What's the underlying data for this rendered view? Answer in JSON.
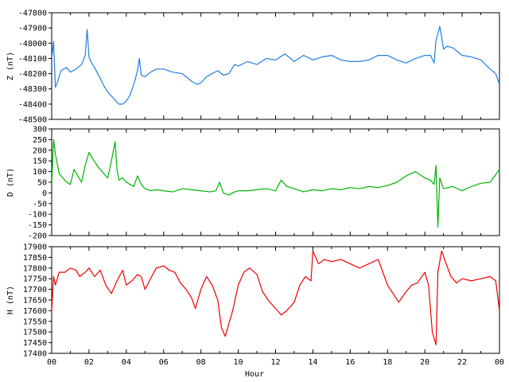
{
  "chart_data": [
    {
      "type": "line",
      "ylabel": "Z (nT)",
      "ylim": [
        -48500,
        -47800
      ],
      "yticks": [
        -47800,
        -47900,
        -48000,
        -48100,
        -48200,
        -48300,
        -48400,
        -48500
      ],
      "xlim": [
        0,
        24
      ],
      "color": "#1f7fe6",
      "series": [
        {
          "x": [
            0.0,
            0.1,
            0.2,
            0.3,
            0.5,
            0.8,
            1.0,
            1.3,
            1.6,
            1.8,
            1.9,
            2.0,
            2.1,
            2.3,
            2.6,
            2.8,
            3.0,
            3.3,
            3.6,
            3.8,
            4.0,
            4.2,
            4.4,
            4.6,
            4.7,
            4.8,
            5.0,
            5.3,
            5.6,
            6.0,
            6.5,
            7.0,
            7.5,
            7.8,
            8.0,
            8.3,
            8.6,
            8.9,
            9.2,
            9.5,
            9.8,
            10.0,
            10.5,
            11.0,
            11.5,
            12.0,
            12.5,
            13.0,
            13.5,
            14.0,
            14.5,
            15.0,
            15.5,
            16.0,
            16.5,
            17.0,
            17.5,
            18.0,
            18.5,
            19.0,
            19.5,
            20.0,
            20.3,
            20.5,
            20.6,
            20.8,
            20.9,
            21.0,
            21.2,
            21.5,
            22.0,
            22.5,
            23.0,
            23.5,
            23.8,
            24.0
          ],
          "y": [
            -48100,
            -47990,
            -48290,
            -48260,
            -48180,
            -48160,
            -48190,
            -48170,
            -48140,
            -48080,
            -47910,
            -48090,
            -48120,
            -48160,
            -48230,
            -48280,
            -48320,
            -48360,
            -48400,
            -48400,
            -48380,
            -48340,
            -48270,
            -48180,
            -48100,
            -48210,
            -48220,
            -48190,
            -48170,
            -48170,
            -48190,
            -48200,
            -48250,
            -48270,
            -48260,
            -48220,
            -48200,
            -48180,
            -48210,
            -48200,
            -48140,
            -48150,
            -48120,
            -48140,
            -48100,
            -48110,
            -48070,
            -48120,
            -48080,
            -48110,
            -48090,
            -48080,
            -48110,
            -48120,
            -48120,
            -48110,
            -48080,
            -48080,
            -48110,
            -48130,
            -48100,
            -48080,
            -48080,
            -48130,
            -47980,
            -47890,
            -47960,
            -48040,
            -48020,
            -48030,
            -48080,
            -48090,
            -48110,
            -48170,
            -48200,
            -48270
          ]
        }
      ]
    },
    {
      "type": "line",
      "ylabel": "D (nT)",
      "ylim": [
        -200,
        300
      ],
      "yticks": [
        300,
        250,
        200,
        150,
        100,
        50,
        0,
        -50,
        -100,
        -150,
        -200
      ],
      "xlim": [
        0,
        24
      ],
      "color": "#00b400",
      "series": [
        {
          "x": [
            0.0,
            0.1,
            0.2,
            0.4,
            0.6,
            0.8,
            1.0,
            1.2,
            1.4,
            1.6,
            1.8,
            2.0,
            2.2,
            2.5,
            2.8,
            3.0,
            3.2,
            3.4,
            3.5,
            3.6,
            3.8,
            4.0,
            4.2,
            4.4,
            4.6,
            4.8,
            5.0,
            5.3,
            5.6,
            6.0,
            6.5,
            7.0,
            7.5,
            8.0,
            8.5,
            8.8,
            9.0,
            9.2,
            9.5,
            9.8,
            10.0,
            10.5,
            11.0,
            11.5,
            12.0,
            12.3,
            12.6,
            13.0,
            13.5,
            14.0,
            14.5,
            15.0,
            15.5,
            16.0,
            16.5,
            17.0,
            17.5,
            18.0,
            18.5,
            19.0,
            19.5,
            20.0,
            20.3,
            20.5,
            20.6,
            20.7,
            20.8,
            21.0,
            21.5,
            22.0,
            22.5,
            23.0,
            23.5,
            24.0
          ],
          "y": [
            40,
            250,
            180,
            90,
            70,
            50,
            40,
            110,
            80,
            50,
            130,
            190,
            160,
            120,
            90,
            70,
            150,
            240,
            110,
            60,
            70,
            50,
            40,
            30,
            80,
            40,
            20,
            10,
            15,
            10,
            5,
            20,
            15,
            10,
            5,
            10,
            50,
            0,
            -10,
            5,
            10,
            10,
            15,
            20,
            10,
            60,
            30,
            20,
            5,
            15,
            10,
            20,
            15,
            25,
            20,
            30,
            25,
            35,
            50,
            80,
            100,
            70,
            60,
            40,
            130,
            -160,
            70,
            20,
            30,
            10,
            30,
            45,
            50,
            110
          ]
        }
      ]
    },
    {
      "type": "line",
      "ylabel": "H (nT)",
      "xlabel": "Hour",
      "ylim": [
        17400,
        17900
      ],
      "yticks": [
        17900,
        17850,
        17800,
        17750,
        17700,
        17650,
        17600,
        17550,
        17500,
        17450,
        17400
      ],
      "xlim": [
        0,
        24
      ],
      "xticks": [
        "00",
        "02",
        "04",
        "06",
        "08",
        "10",
        "12",
        "14",
        "16",
        "18",
        "20",
        "22",
        "00"
      ],
      "color": "#f00000",
      "series": [
        {
          "x": [
            0.0,
            0.1,
            0.2,
            0.4,
            0.7,
            1.0,
            1.3,
            1.5,
            1.8,
            2.0,
            2.3,
            2.6,
            2.9,
            3.2,
            3.5,
            3.8,
            4.0,
            4.3,
            4.6,
            4.8,
            5.0,
            5.3,
            5.6,
            6.0,
            6.3,
            6.6,
            6.9,
            7.2,
            7.5,
            7.7,
            8.0,
            8.3,
            8.6,
            8.9,
            9.1,
            9.3,
            9.5,
            9.7,
            10.0,
            10.3,
            10.6,
            11.0,
            11.3,
            11.6,
            12.0,
            12.3,
            12.6,
            13.0,
            13.3,
            13.6,
            13.9,
            14.0,
            14.3,
            14.6,
            15.0,
            15.5,
            16.0,
            16.5,
            17.0,
            17.5,
            18.0,
            18.3,
            18.6,
            19.0,
            19.3,
            19.6,
            20.0,
            20.2,
            20.4,
            20.6,
            20.7,
            20.9,
            21.1,
            21.4,
            21.7,
            22.0,
            22.5,
            23.0,
            23.5,
            23.8,
            24.0
          ],
          "y": [
            17600,
            17760,
            17720,
            17780,
            17780,
            17800,
            17790,
            17760,
            17780,
            17800,
            17760,
            17790,
            17720,
            17680,
            17740,
            17790,
            17720,
            17740,
            17770,
            17760,
            17700,
            17750,
            17800,
            17810,
            17790,
            17780,
            17730,
            17700,
            17660,
            17610,
            17700,
            17760,
            17720,
            17650,
            17520,
            17480,
            17540,
            17600,
            17720,
            17780,
            17800,
            17770,
            17690,
            17650,
            17610,
            17580,
            17600,
            17640,
            17720,
            17760,
            17740,
            17880,
            17820,
            17840,
            17830,
            17840,
            17820,
            17800,
            17820,
            17840,
            17720,
            17680,
            17640,
            17690,
            17720,
            17730,
            17780,
            17720,
            17500,
            17440,
            17780,
            17880,
            17830,
            17760,
            17730,
            17750,
            17740,
            17750,
            17760,
            17740,
            17600
          ]
        }
      ]
    }
  ]
}
